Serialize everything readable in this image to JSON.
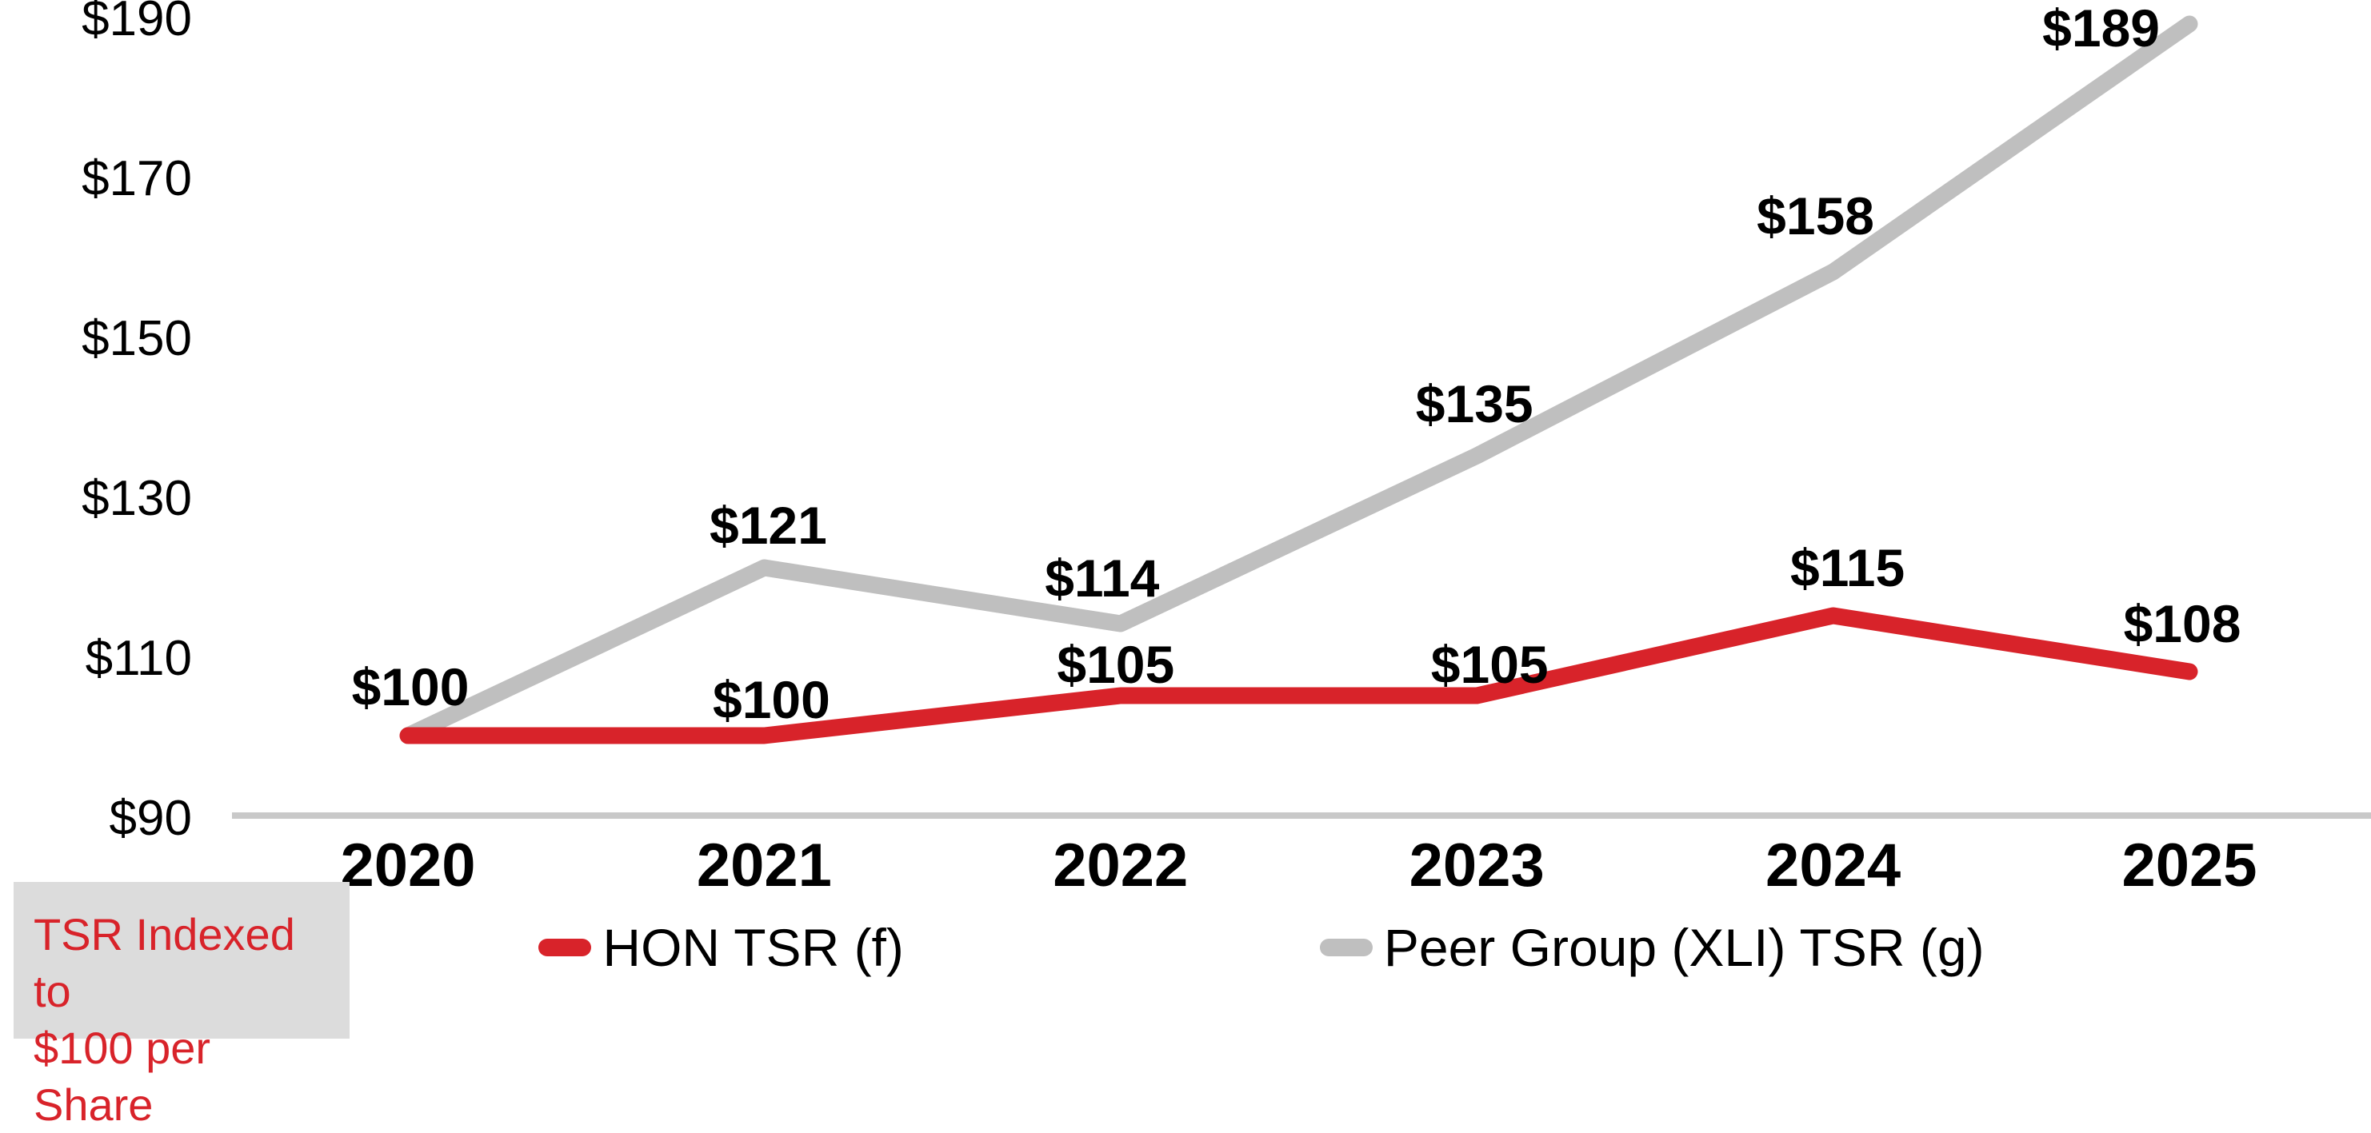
{
  "chart_data": {
    "type": "line",
    "title": "",
    "xlabel": "",
    "ylabel": "",
    "categories": [
      "2020",
      "2021",
      "2022",
      "2023",
      "2024",
      "2025"
    ],
    "series": [
      {
        "name": "HON TSR (f)",
        "color": "#d8232a",
        "values": [
          100,
          100,
          105,
          105,
          115,
          108
        ],
        "data_labels": [
          "$100",
          "$100",
          "$105",
          "$105",
          "$115",
          "$108"
        ]
      },
      {
        "name": "Peer Group (XLI) TSR (g)",
        "color": "#bfbfbf",
        "values": [
          100,
          121,
          114,
          135,
          158,
          189
        ],
        "data_labels": [
          null,
          "$121",
          "$114",
          "$135",
          "$158",
          "$189"
        ]
      }
    ],
    "y_ticks": [
      "$190",
      "$170",
      "$150",
      "$130",
      "$110",
      "$90"
    ],
    "y_tick_values": [
      190,
      170,
      150,
      130,
      110,
      90
    ],
    "ylim": [
      90,
      190
    ],
    "value_prefix": "$",
    "grid": false,
    "legend_position": "bottom-center",
    "axis_color": "#c9c9c9",
    "text_color": "#000000",
    "note": {
      "line1": "TSR Indexed to",
      "line2": "$100 per Share",
      "text_color": "#d8232a",
      "bg_color": "#dcdcdc"
    }
  }
}
